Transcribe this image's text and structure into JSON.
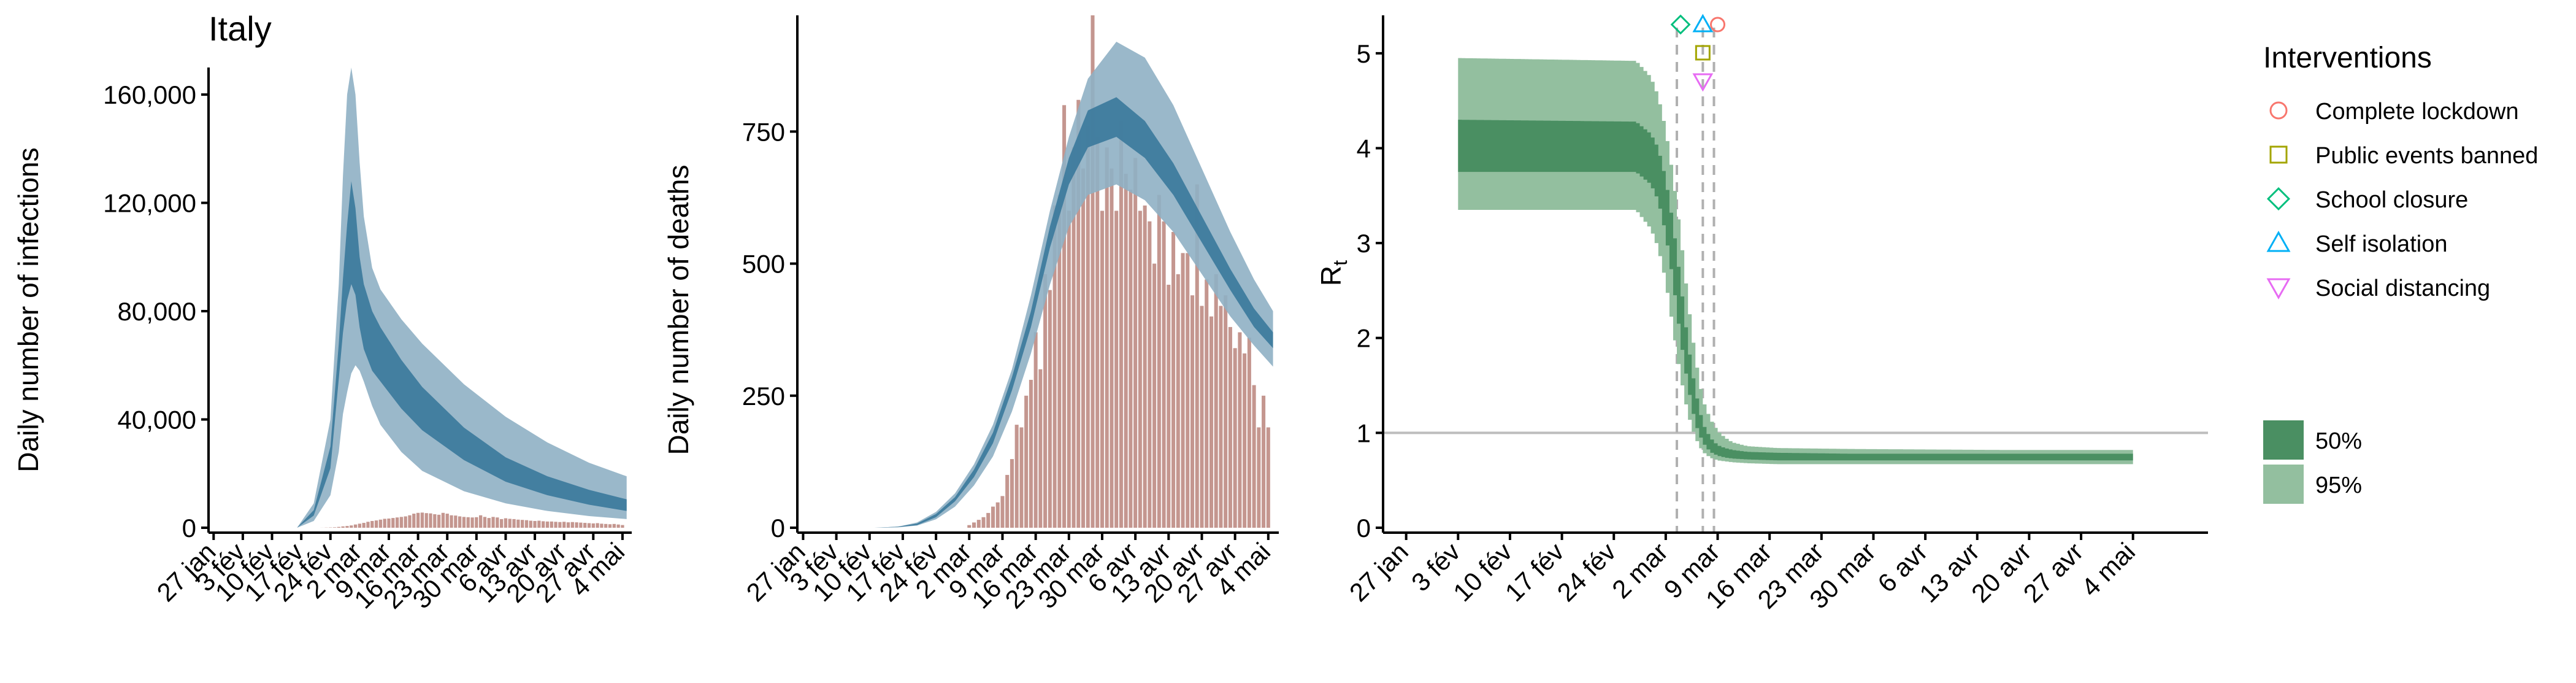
{
  "title": "Italy",
  "chart_data": [
    {
      "type": "area",
      "title": "Italy",
      "xlabel": "",
      "ylabel": "Daily number of infections",
      "x_tick_labels": [
        "27 jan",
        "3 fév",
        "10 fév",
        "17 fév",
        "24 fév",
        "2 mar",
        "9 mar",
        "16 mar",
        "23 mar",
        "30 mar",
        "6 avr",
        "13 avr",
        "20 avr",
        "27 avr",
        "4 mai"
      ],
      "y_tick_labels": [
        "0",
        "40,000",
        "80,000",
        "120,000",
        "160,000"
      ],
      "ylim": [
        0,
        170000
      ],
      "grid": false,
      "series": [
        {
          "kind": "ribbon_95",
          "color": "#8fb0c4",
          "x": [
            0,
            20,
            24,
            28,
            30,
            31,
            32,
            33,
            34,
            35,
            36,
            38,
            40,
            45,
            50,
            60,
            70,
            80,
            90,
            99
          ],
          "lower": [
            0,
            0,
            2500,
            12000,
            28000,
            42000,
            50000,
            57000,
            60000,
            58000,
            54000,
            45000,
            38000,
            28000,
            21000,
            13500,
            9000,
            6200,
            4300,
            3200
          ],
          "upper": [
            0,
            0,
            9000,
            40000,
            90000,
            130000,
            160000,
            170000,
            160000,
            135000,
            115000,
            96000,
            88000,
            77000,
            68000,
            53000,
            41000,
            31500,
            24000,
            19000
          ]
        },
        {
          "kind": "ribbon_50",
          "color": "#3c7a9c",
          "x": [
            0,
            20,
            24,
            28,
            30,
            31,
            32,
            33,
            34,
            35,
            36,
            38,
            40,
            45,
            50,
            60,
            70,
            80,
            90,
            99
          ],
          "lower": [
            0,
            0,
            4500,
            22000,
            55000,
            72000,
            84000,
            90000,
            86000,
            74000,
            66000,
            58000,
            54000,
            44000,
            36000,
            25000,
            17000,
            12000,
            8500,
            6200
          ],
          "upper": [
            0,
            0,
            6500,
            30000,
            68000,
            92000,
            112000,
            128000,
            118000,
            100000,
            90000,
            80000,
            74000,
            62000,
            52000,
            37000,
            26000,
            19000,
            14000,
            10500
          ]
        }
      ],
      "bars": {
        "color": "#c4968f",
        "x": [
          26,
          27,
          28,
          29,
          30,
          31,
          32,
          33,
          34,
          35,
          36,
          37,
          38,
          39,
          40,
          41,
          42,
          43,
          44,
          45,
          46,
          47,
          48,
          49,
          50,
          51,
          52,
          53,
          54,
          55,
          56,
          57,
          58,
          59,
          60,
          61,
          62,
          63,
          64,
          65,
          66,
          67,
          68,
          69,
          70,
          71,
          72,
          73,
          74,
          75,
          76,
          77,
          78,
          79,
          80,
          81,
          82,
          83,
          84,
          85,
          86,
          87,
          88,
          89,
          90,
          91,
          92,
          93,
          94,
          95,
          96,
          97,
          98
        ],
        "values": [
          20,
          60,
          100,
          160,
          300,
          500,
          650,
          850,
          1200,
          1500,
          1800,
          2200,
          2500,
          2700,
          3000,
          3300,
          3400,
          3600,
          3800,
          4000,
          4200,
          4600,
          5200,
          5500,
          5600,
          5400,
          5300,
          5000,
          4800,
          5500,
          5200,
          4600,
          4500,
          4200,
          4000,
          3900,
          3800,
          3900,
          4600,
          4000,
          3600,
          4000,
          3800,
          3200,
          3500,
          3300,
          3200,
          3000,
          2900,
          2800,
          2600,
          2500,
          2600,
          2400,
          2300,
          2300,
          2200,
          2100,
          2200,
          2000,
          2100,
          2000,
          1900,
          1800,
          1700,
          1600,
          1700,
          1500,
          1400,
          1300,
          1400,
          1200,
          1000
        ]
      }
    },
    {
      "type": "area",
      "title": "",
      "xlabel": "",
      "ylabel": "Daily number of deaths",
      "x_tick_labels": [
        "27 jan",
        "3 fév",
        "10 fév",
        "17 fév",
        "24 fév",
        "2 mar",
        "9 mar",
        "16 mar",
        "23 mar",
        "30 mar",
        "6 avr",
        "13 avr",
        "20 avr",
        "27 avr",
        "4 mai"
      ],
      "y_tick_labels": [
        "0",
        "250",
        "500",
        "750"
      ],
      "ylim": [
        0,
        970
      ],
      "grid": false,
      "series": [
        {
          "kind": "ribbon_95",
          "color": "#8fb0c4",
          "x": [
            0,
            15,
            20,
            24,
            28,
            32,
            36,
            40,
            44,
            48,
            52,
            56,
            60,
            66,
            72,
            78,
            84,
            90,
            95,
            99
          ],
          "lower": [
            0,
            0,
            1,
            4,
            16,
            40,
            80,
            135,
            220,
            330,
            460,
            570,
            630,
            650,
            620,
            560,
            480,
            400,
            345,
            305
          ],
          "upper": [
            0,
            0,
            2,
            10,
            30,
            65,
            120,
            195,
            300,
            440,
            600,
            740,
            850,
            920,
            890,
            800,
            680,
            560,
            470,
            410
          ]
        },
        {
          "kind": "ribbon_50",
          "color": "#3c7a9c",
          "x": [
            0,
            15,
            20,
            24,
            28,
            32,
            36,
            40,
            44,
            48,
            52,
            56,
            60,
            66,
            72,
            78,
            84,
            90,
            95,
            99
          ],
          "lower": [
            0,
            0,
            1,
            5,
            20,
            50,
            96,
            160,
            260,
            380,
            530,
            650,
            720,
            740,
            700,
            630,
            540,
            450,
            380,
            340
          ],
          "upper": [
            0,
            0,
            2,
            8,
            26,
            58,
            110,
            180,
            285,
            410,
            570,
            700,
            790,
            815,
            770,
            690,
            590,
            490,
            415,
            370
          ]
        }
      ],
      "bars": {
        "color": "#c4968f",
        "x": [
          35,
          36,
          37,
          38,
          39,
          40,
          41,
          42,
          43,
          44,
          45,
          46,
          47,
          48,
          49,
          50,
          51,
          52,
          53,
          54,
          55,
          56,
          57,
          58,
          59,
          60,
          61,
          62,
          63,
          64,
          65,
          66,
          67,
          68,
          69,
          70,
          71,
          72,
          73,
          74,
          75,
          76,
          77,
          78,
          79,
          80,
          81,
          82,
          83,
          84,
          85,
          86,
          87,
          88,
          89,
          90,
          91,
          92,
          93,
          94,
          95,
          96,
          97,
          98
        ],
        "values": [
          5,
          10,
          15,
          20,
          28,
          40,
          48,
          60,
          100,
          130,
          195,
          190,
          250,
          280,
          370,
          300,
          480,
          450,
          610,
          630,
          800,
          600,
          720,
          810,
          680,
          760,
          970,
          740,
          600,
          720,
          680,
          600,
          770,
          670,
          640,
          700,
          600,
          610,
          580,
          500,
          630,
          580,
          460,
          560,
          480,
          520,
          520,
          440,
          650,
          420,
          470,
          400,
          480,
          420,
          440,
          380,
          340,
          370,
          330,
          360,
          270,
          190,
          250,
          190
        ]
      }
    },
    {
      "type": "area",
      "title": "",
      "xlabel": "",
      "ylabel": "Rt",
      "x_tick_labels": [
        "27 jan",
        "3 fév",
        "10 fév",
        "17 fév",
        "24 fév",
        "2 mar",
        "9 mar",
        "16 mar",
        "23 mar",
        "30 mar",
        "6 avr",
        "13 avr",
        "20 avr",
        "27 avr",
        "4 mai"
      ],
      "y_tick_labels": [
        "0",
        "1",
        "2",
        "3",
        "4",
        "5"
      ],
      "ylim": [
        0,
        5.4
      ],
      "grid": false,
      "reference_line": 1,
      "intervention_dates": [
        36.5,
        40,
        41.5
      ],
      "ribbon_95": {
        "color": "#93bf9f",
        "x": [
          7,
          31,
          33,
          34,
          35,
          36,
          37,
          38,
          39,
          40,
          41,
          42,
          43,
          44,
          46,
          50,
          60,
          80,
          98
        ],
        "lower": [
          3.35,
          3.35,
          3.15,
          2.95,
          2.6,
          2.1,
          1.6,
          1.2,
          0.95,
          0.8,
          0.74,
          0.71,
          0.7,
          0.69,
          0.68,
          0.67,
          0.67,
          0.67,
          0.67
        ],
        "upper": [
          4.95,
          4.92,
          4.75,
          4.55,
          4.2,
          3.7,
          3.1,
          2.4,
          1.8,
          1.35,
          1.15,
          1.02,
          0.95,
          0.9,
          0.86,
          0.84,
          0.83,
          0.82,
          0.82
        ]
      },
      "ribbon_50": {
        "color": "#4a8f62",
        "x": [
          7,
          31,
          33,
          34,
          35,
          36,
          37,
          38,
          39,
          40,
          41,
          42,
          43,
          44,
          46,
          50,
          60,
          80,
          98
        ],
        "lower": [
          3.75,
          3.75,
          3.62,
          3.45,
          3.1,
          2.6,
          2.0,
          1.5,
          1.1,
          0.9,
          0.8,
          0.76,
          0.74,
          0.73,
          0.72,
          0.71,
          0.71,
          0.71,
          0.71
        ],
        "upper": [
          4.3,
          4.28,
          4.15,
          4.0,
          3.68,
          3.2,
          2.6,
          1.95,
          1.45,
          1.1,
          0.95,
          0.87,
          0.84,
          0.82,
          0.8,
          0.79,
          0.78,
          0.78,
          0.78
        ]
      }
    }
  ],
  "legend_interventions": {
    "title": "Interventions",
    "items": [
      {
        "label": "Complete lockdown",
        "shape": "circle",
        "color": "#f8766d",
        "date": 42
      },
      {
        "label": "Public events banned",
        "shape": "square",
        "color": "#a3a500",
        "date": 40
      },
      {
        "label": "School closure",
        "shape": "diamond",
        "color": "#00bf7d",
        "date": 37
      },
      {
        "label": "Self isolation",
        "shape": "triangle-up",
        "color": "#00b0f6",
        "date": 40
      },
      {
        "label": "Social distancing",
        "shape": "triangle-down",
        "color": "#e76bf3",
        "date": 40
      }
    ]
  },
  "legend_intervals": {
    "items": [
      {
        "label": "50%",
        "color": "#4a8f62"
      },
      {
        "label": "95%",
        "color": "#93bf9f"
      }
    ]
  }
}
